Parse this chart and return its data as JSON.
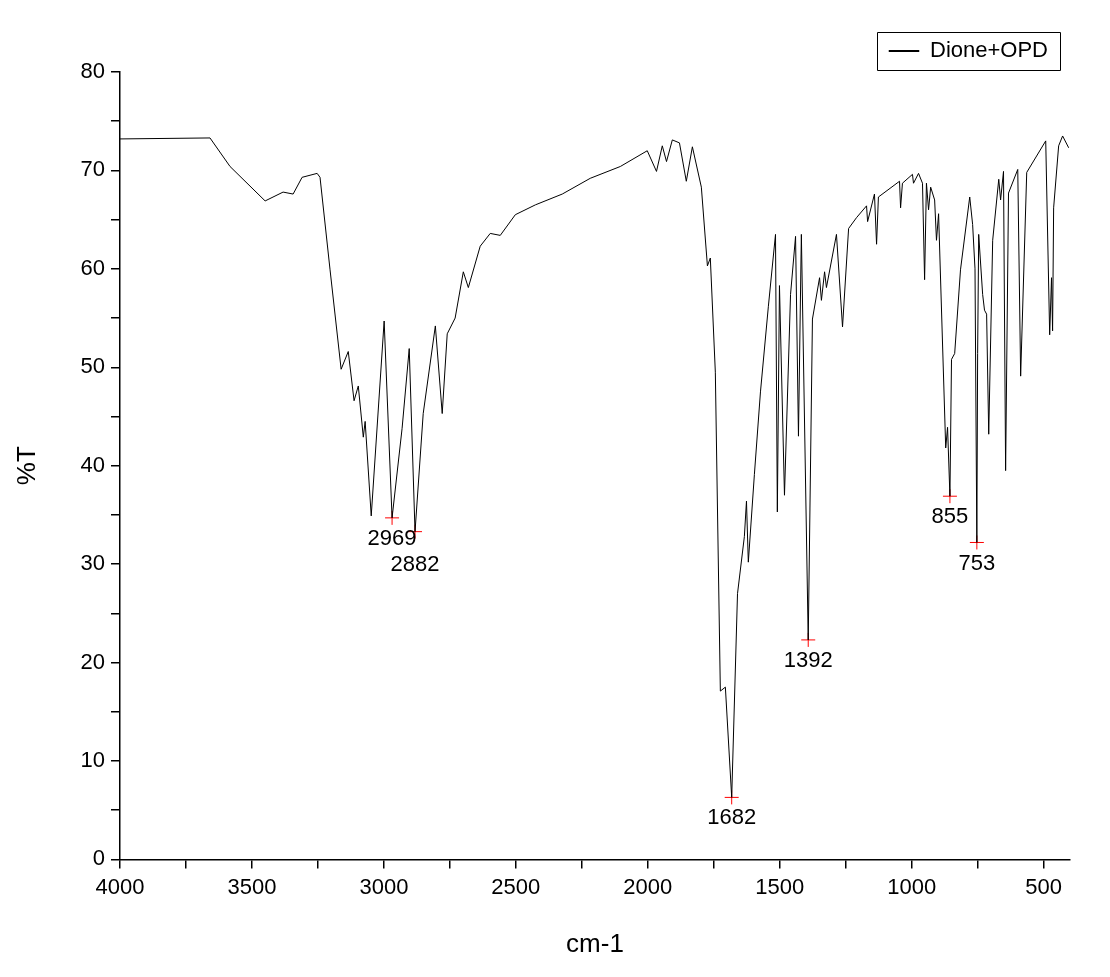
{
  "chart_data": {
    "type": "line",
    "xlabel": "cm-1",
    "ylabel": "%T",
    "legend": "top right",
    "grid": false,
    "marker": "none",
    "line_style": "solid",
    "xlim": [
      4000,
      400
    ],
    "ylim": [
      0,
      80
    ],
    "xticks": [
      4000,
      {
        "value": 3750,
        "label": null
      },
      3500,
      {
        "value": 3250,
        "label": null
      },
      3000,
      {
        "value": 2750,
        "label": null
      },
      2500,
      {
        "value": 2250,
        "label": null
      },
      2000,
      {
        "value": 1750,
        "label": null
      },
      1500,
      {
        "value": 1250,
        "label": null
      },
      1000,
      {
        "value": 750,
        "label": null
      },
      500
    ],
    "yticks": [
      0,
      {
        "value": 5,
        "label": null
      },
      10,
      {
        "value": 15,
        "label": null
      },
      20,
      {
        "value": 25,
        "label": null
      },
      30,
      {
        "value": 35,
        "label": null
      },
      40,
      {
        "value": 45,
        "label": null
      },
      50,
      {
        "value": 55,
        "label": null
      },
      60,
      {
        "value": 65,
        "label": null
      },
      70,
      {
        "value": 75,
        "label": null
      },
      80
    ],
    "series": [
      {
        "name": "Dione+OPD",
        "color": "#000000",
        "x": [
          4000,
          3659,
          3583,
          3450,
          3382,
          3344,
          3310,
          3253,
          3242,
          3204,
          3162,
          3135,
          3113,
          3097,
          3078,
          3071,
          3048,
          2999,
          2969,
          2931,
          2904,
          2882,
          2851,
          2805,
          2779,
          2760,
          2730,
          2699,
          2680,
          2635,
          2597,
          2559,
          2502,
          2426,
          2324,
          2218,
          2104,
          2002,
          1967,
          1945,
          1929,
          1907,
          1880,
          1854,
          1831,
          1797,
          1774,
          1763,
          1744,
          1725,
          1706,
          1682,
          1660,
          1634,
          1626,
          1619,
          1596,
          1573,
          1543,
          1516,
          1509,
          1501,
          1482,
          1459,
          1440,
          1429,
          1418,
          1392,
          1376,
          1349,
          1342,
          1330,
          1323,
          1285,
          1262,
          1239,
          1209,
          1171,
          1167,
          1141,
          1133,
          1126,
          1046,
          1042,
          1035,
          997,
          993,
          974,
          959,
          951,
          944,
          936,
          928,
          913,
          906,
          898,
          871,
          864,
          855,
          849,
          837,
          815,
          780,
          769,
          760,
          753,
          750,
          746,
          731,
          724,
          716,
          708,
          693,
          670,
          663,
          652,
          644,
          633,
          598,
          587,
          564,
          492,
          477,
          470,
          466,
          462,
          443,
          428,
          405
        ],
        "values": [
          73.2,
          73.3,
          70.4,
          66.9,
          67.8,
          67.6,
          69.3,
          69.7,
          69.3,
          59.9,
          49.8,
          51.6,
          46.6,
          48.1,
          42.9,
          44.5,
          34.9,
          54.7,
          34.7,
          43.8,
          51.9,
          33.3,
          45.3,
          54.2,
          45.3,
          53.4,
          55.0,
          59.7,
          58.1,
          62.3,
          63.6,
          63.4,
          65.5,
          66.5,
          67.6,
          69.2,
          70.4,
          72.0,
          69.9,
          72.5,
          70.9,
          73.1,
          72.8,
          68.9,
          72.4,
          68.3,
          60.3,
          61.1,
          49.5,
          17.1,
          17.5,
          6.3,
          27.0,
          32.8,
          36.4,
          30.2,
          39.1,
          47.5,
          56.2,
          63.5,
          35.3,
          58.3,
          37.0,
          57.4,
          63.3,
          43.0,
          63.5,
          22.3,
          54.9,
          59.1,
          56.8,
          59.7,
          58.1,
          63.5,
          54.1,
          64.1,
          65.2,
          66.4,
          64.8,
          67.6,
          62.5,
          67.3,
          68.9,
          66.2,
          68.7,
          69.6,
          68.7,
          69.7,
          68.7,
          58.9,
          68.7,
          66.0,
          68.3,
          67.0,
          62.9,
          65.6,
          41.8,
          43.9,
          36.9,
          50.8,
          51.4,
          59.9,
          67.3,
          64.5,
          60.0,
          32.2,
          51.4,
          63.5,
          57.4,
          55.8,
          55.4,
          43.2,
          62.9,
          69.1,
          67.0,
          69.9,
          39.5,
          67.7,
          70.1,
          49.1,
          69.8,
          73.0,
          53.3,
          59.1,
          53.7,
          66.2,
          72.5,
          73.5,
          72.3
        ]
      },
      {
        "type": "scatter",
        "color": "#ff0000",
        "marker": "cross",
        "x": [
          2969,
          2882,
          1682,
          1392,
          855,
          753
        ],
        "values": [
          34.7,
          33.3,
          6.3,
          22.3,
          36.9,
          32.2
        ]
      }
    ],
    "annotations": [
      {
        "text": "2969",
        "x": 2969,
        "y": 34.7
      },
      {
        "text": "2882",
        "x": 2882,
        "y": 33.3
      },
      {
        "text": "1682",
        "x": 1682,
        "y": 6.3
      },
      {
        "text": "1392",
        "x": 1392,
        "y": 22.3
      },
      {
        "text": "855",
        "x": 855,
        "y": 36.9
      },
      {
        "text": "753",
        "x": 753,
        "y": 32.2
      }
    ]
  }
}
